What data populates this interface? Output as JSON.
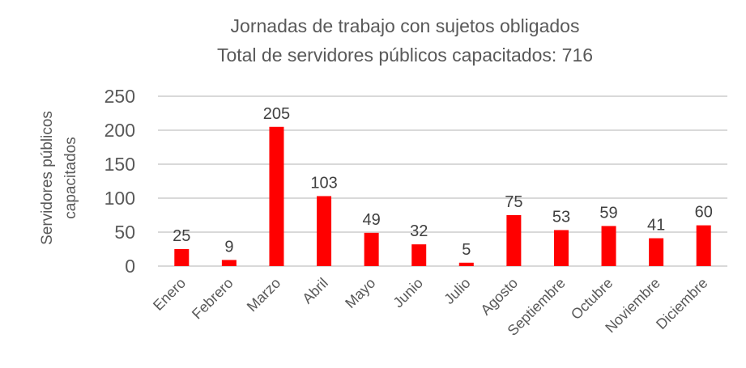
{
  "chart_data": {
    "type": "bar",
    "title": "Jornadas de trabajo con sujetos obligados",
    "subtitle": "Total de servidores públicos capacitados: 716",
    "xlabel": "",
    "ylabel": "Servidores públicos capacitados",
    "ylabel_lines": [
      "Servidores públicos",
      "capacitados"
    ],
    "categories": [
      "Enero",
      "Febrero",
      "Marzo",
      "Abril",
      "Mayo",
      "Junio",
      "Julio",
      "Agosto",
      "Septiembre",
      "Octubre",
      "Noviembre",
      "Diciembre"
    ],
    "values": [
      25,
      9,
      205,
      103,
      49,
      32,
      5,
      75,
      53,
      59,
      41,
      60
    ],
    "ylim": [
      0,
      250
    ],
    "yticks": [
      0,
      50,
      100,
      150,
      200,
      250
    ],
    "grid": true,
    "legend": "none",
    "data_labels": true,
    "colors": {
      "bar": "#ff0000",
      "grid": "#d9d9d9",
      "text": "#595959"
    }
  }
}
